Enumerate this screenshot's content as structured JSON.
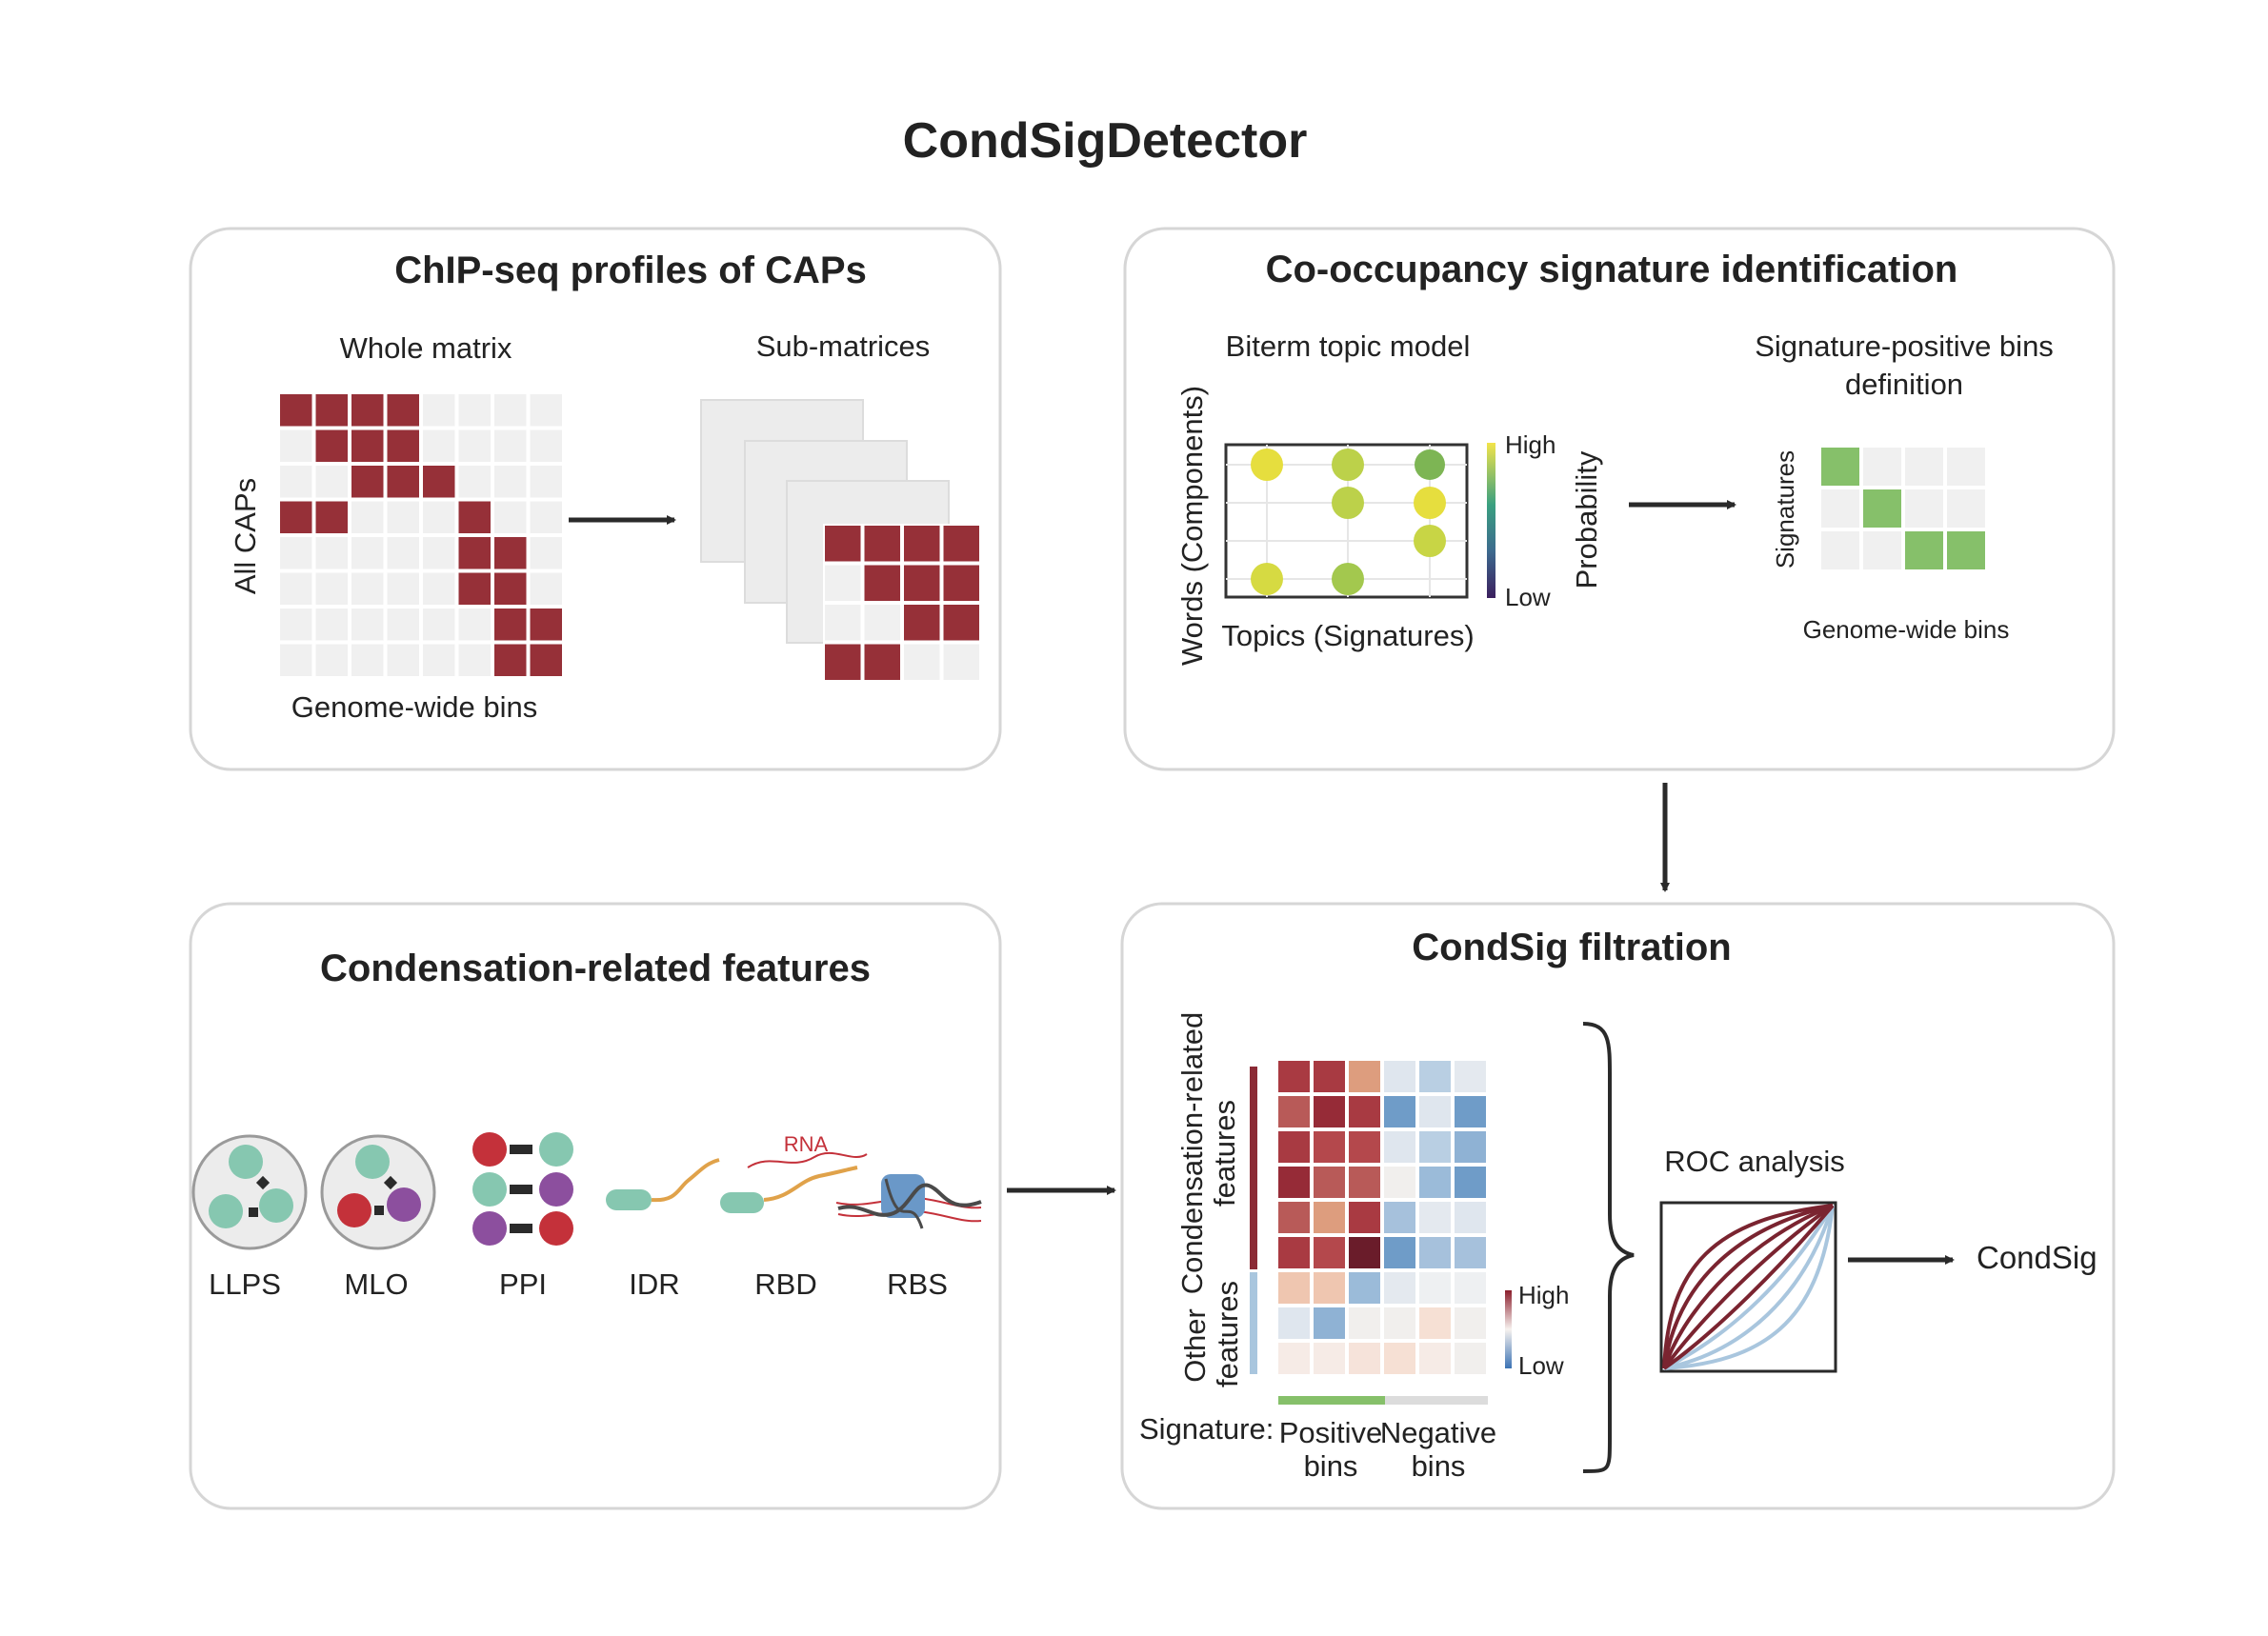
{
  "title": "CondSigDetector",
  "colors": {
    "dark_red": "#963038",
    "light_cell": "#f0f0f0",
    "green": "#86c06a",
    "teal": "#86c7b0",
    "red_dot": "#c4313a",
    "purple_dot": "#8c4f9e",
    "orange_line": "#e0a24a",
    "blue_curve": "#a9c6de"
  },
  "panel_chip": {
    "title": "ChIP-seq profiles of CAPs",
    "whole_matrix": "Whole matrix",
    "sub_matrices": "Sub-matrices",
    "y_label": "All CAPs",
    "x_label": "Genome-wide bins",
    "whole_rows": [
      [
        1,
        1,
        1,
        1,
        0,
        0,
        0,
        0
      ],
      [
        0,
        1,
        1,
        1,
        0,
        0,
        0,
        0
      ],
      [
        0,
        0,
        1,
        1,
        1,
        0,
        0,
        0
      ],
      [
        1,
        1,
        0,
        0,
        0,
        1,
        0,
        0
      ],
      [
        0,
        0,
        0,
        0,
        0,
        1,
        1,
        0
      ],
      [
        0,
        0,
        0,
        0,
        0,
        1,
        1,
        0
      ],
      [
        0,
        0,
        0,
        0,
        0,
        0,
        1,
        1
      ],
      [
        0,
        0,
        0,
        0,
        0,
        0,
        1,
        1
      ]
    ],
    "sub_rows": [
      [
        1,
        1,
        1,
        1
      ],
      [
        0,
        1,
        1,
        1
      ],
      [
        0,
        0,
        1,
        1
      ],
      [
        1,
        1,
        0,
        0
      ]
    ]
  },
  "panel_cooc": {
    "title": "Co-occupancy signature identification",
    "biterm": "Biterm topic model",
    "y_label": "Words (Components)",
    "x_label": "Topics (Signatures)",
    "legend_high": "High",
    "legend_low": "Low",
    "legend_title": "Probability",
    "sigpos_title_1": "Signature-positive bins",
    "sigpos_title_2": "definition",
    "sig_y_label": "Signatures",
    "sig_x_label": "Genome-wide bins",
    "sig_rows": [
      [
        1,
        0,
        0,
        0
      ],
      [
        0,
        1,
        0,
        0
      ],
      [
        0,
        0,
        1,
        1
      ]
    ]
  },
  "panel_features": {
    "title": "Condensation-related features",
    "items": [
      "LLPS",
      "MLO",
      "PPI",
      "IDR",
      "RBD",
      "RBS"
    ],
    "rna_label": "RNA"
  },
  "panel_filter": {
    "title": "CondSig filtration",
    "group_cond_1": "Condensation-related",
    "group_cond_2": "features",
    "group_other_1": "Other",
    "group_other_2": "features",
    "legend_high": "High",
    "legend_low": "Low",
    "signature_label": "Signature:",
    "positive_1": "Positive",
    "positive_2": "bins",
    "negative_1": "Negative",
    "negative_2": "bins",
    "roc_label": "ROC analysis",
    "output": "CondSig",
    "heatmap_colors": [
      [
        "#a93a42",
        "#a83a42",
        "#dd9d7e",
        "#dfe6ee",
        "#b9cfe3",
        "#e4e9ef"
      ],
      [
        "#b85a58",
        "#962b37",
        "#a83a42",
        "#6f9cc8",
        "#dfe6ee",
        "#6f9cc8"
      ],
      [
        "#a83a42",
        "#b4484c",
        "#b4484c",
        "#dfe6ee",
        "#b9cfe3",
        "#8fb2d4"
      ],
      [
        "#962b37",
        "#b85a58",
        "#b85a58",
        "#f1efed",
        "#9bbbd9",
        "#6f9cc8"
      ],
      [
        "#b85a58",
        "#dd9d7e",
        "#a93a42",
        "#a6c1dc",
        "#e4e9ef",
        "#dfe6ee"
      ],
      [
        "#a93a42",
        "#b4484c",
        "#6a1c2a",
        "#6f9cc8",
        "#a6c1dc",
        "#a6c1dc"
      ],
      [
        "#efc6b0",
        "#efc6b0",
        "#9bbbd9",
        "#e4e9ef",
        "#eef0f2",
        "#eef0f2"
      ],
      [
        "#dfe6ee",
        "#8fb2d4",
        "#f1efed",
        "#f1efed",
        "#f6e0d4",
        "#f1efed"
      ],
      [
        "#f6ebe6",
        "#f6ebe6",
        "#f6e3da",
        "#f6e0d4",
        "#f6ebe6",
        "#f1efed"
      ]
    ]
  }
}
